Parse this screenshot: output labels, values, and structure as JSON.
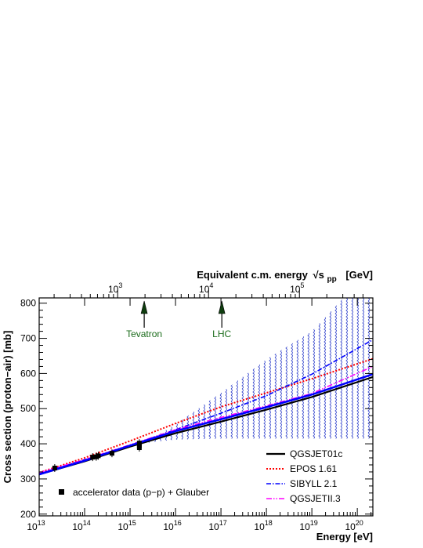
{
  "chart_data": {
    "type": "line",
    "title": "",
    "xlabel": "Energy   [eV]",
    "ylabel": "Cross section (proton−air)  [mb]",
    "top_axis": {
      "label_prefix": "Equivalent c.m. energy",
      "label_symbol": "√s",
      "label_sub": "pp",
      "label_unit": "[GeV]",
      "tick_values_gev": [
        1000,
        10000,
        100000
      ],
      "tick_labels": [
        {
          "base": "10",
          "exp": "3"
        },
        {
          "base": "10",
          "exp": "4"
        },
        {
          "base": "10",
          "exp": "5"
        }
      ]
    },
    "x_scale": "log",
    "xlim": [
      10000000000000.0,
      2.2e+20
    ],
    "ylim": [
      195,
      815
    ],
    "x_tick_labels": [
      {
        "value": 10000000000000.0,
        "base": "10",
        "exp": "13"
      },
      {
        "value": 100000000000000.0,
        "base": "10",
        "exp": "14"
      },
      {
        "value": 1000000000000000.0,
        "base": "10",
        "exp": "15"
      },
      {
        "value": 1e+16,
        "base": "10",
        "exp": "16"
      },
      {
        "value": 1e+17,
        "base": "10",
        "exp": "17"
      },
      {
        "value": 1e+18,
        "base": "10",
        "exp": "18"
      },
      {
        "value": 1e+19,
        "base": "10",
        "exp": "19"
      },
      {
        "value": 1e+20,
        "base": "10",
        "exp": "20"
      }
    ],
    "y_tick_labels": [
      {
        "value": 200,
        "text": "200"
      },
      {
        "value": 300,
        "text": "300"
      },
      {
        "value": 400,
        "text": "400"
      },
      {
        "value": 500,
        "text": "500"
      },
      {
        "value": 600,
        "text": "600"
      },
      {
        "value": 700,
        "text": "700"
      },
      {
        "value": 800,
        "text": "800"
      }
    ],
    "grid": false,
    "series": [
      {
        "name": "QGSJET01c",
        "color": "#000000",
        "style": "solid",
        "x": [
          10000000000000.0,
          100000000000000.0,
          1000000000000000.0,
          1e+16,
          1e+17,
          1e+18,
          1e+19,
          2.2e+20
        ],
        "y": [
          313,
          350,
          392,
          430,
          463,
          497,
          533,
          590
        ]
      },
      {
        "name": "EPOS 1.61",
        "color": "#ff0000",
        "style": "dotted",
        "x": [
          10000000000000.0,
          100000000000000.0,
          1000000000000000.0,
          1e+16,
          1e+17,
          1e+18,
          1e+19,
          2.2e+20
        ],
        "y": [
          318,
          360,
          408,
          458,
          505,
          545,
          585,
          642
        ]
      },
      {
        "name": "SIBYLL 2.1",
        "color": "#0000ff",
        "style": "dashdot",
        "x": [
          10000000000000.0,
          100000000000000.0,
          1000000000000000.0,
          1e+16,
          1e+17,
          1e+18,
          1e+19,
          2.2e+20
        ],
        "y": [
          315,
          355,
          395,
          440,
          487,
          537,
          598,
          696
        ]
      },
      {
        "name": "QGSJETII.3",
        "color": "#ff00ff",
        "style": "dashdotdot",
        "x": [
          10000000000000.0,
          100000000000000.0,
          1000000000000000.0,
          1e+16,
          1e+17,
          1e+18,
          1e+19,
          2.2e+20
        ],
        "y": [
          318,
          355,
          397,
          440,
          475,
          508,
          543,
          620
        ]
      },
      {
        "name": "",
        "color": "#0000ff",
        "style": "solid-thick",
        "x": [
          10000000000000.0,
          100000000000000.0,
          1000000000000000.0,
          1e+16,
          1e+17,
          1e+18,
          1e+19,
          2.2e+20
        ],
        "y": [
          313,
          352,
          395,
          436,
          470,
          504,
          540,
          598
        ]
      }
    ],
    "uncertainty_band": {
      "color": "#3344cc",
      "x": [
        1000000000000000.0,
        2000000000000000.0,
        1e+16,
        1e+17,
        1e+18,
        1e+19,
        5e+19,
        2.2e+20
      ],
      "upper": [
        392,
        402,
        455,
        545,
        640,
        720,
        815,
        815
      ],
      "lower": [
        392,
        402,
        412,
        415,
        415,
        415,
        415,
        415
      ]
    },
    "data_points": {
      "name": "accelerator data (p−p) + Glauber",
      "x": [
        22000000000000.0,
        150000000000000.0,
        180000000000000.0,
        200000000000000.0,
        400000000000000.0,
        1600000000000000.0,
        1600000000000000.0,
        1600000000000000.0
      ],
      "y": [
        331,
        362,
        363,
        366,
        373,
        389,
        395,
        402
      ]
    },
    "annotations": [
      {
        "label": "Tevatron",
        "x_gev": 1960
      },
      {
        "label": "LHC",
        "x_gev": 14000
      }
    ],
    "legend_position": "bottom-right"
  }
}
